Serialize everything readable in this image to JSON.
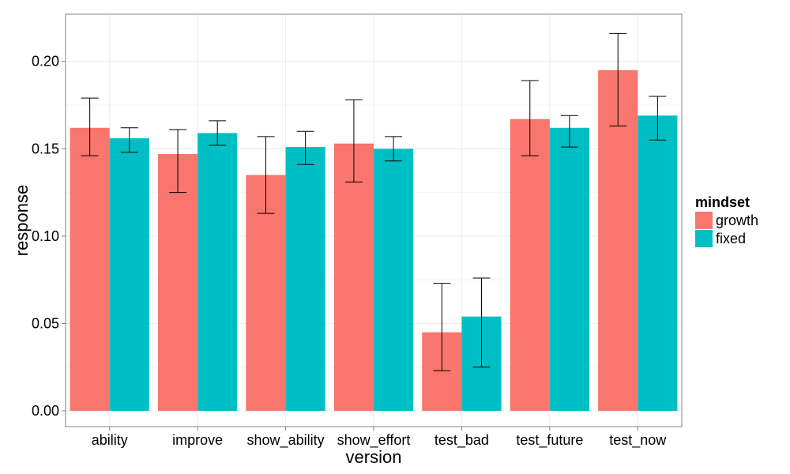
{
  "chart_data": {
    "type": "bar",
    "title": "",
    "xlabel": "version",
    "ylabel": "response",
    "categories": [
      "ability",
      "improve",
      "show_ability",
      "show_effort",
      "test_bad",
      "test_future",
      "test_now"
    ],
    "series": [
      {
        "name": "growth",
        "color": "#F8766D",
        "values": [
          0.162,
          0.147,
          0.135,
          0.153,
          0.045,
          0.167,
          0.195
        ],
        "error_low": [
          0.146,
          0.125,
          0.113,
          0.131,
          0.023,
          0.146,
          0.163
        ],
        "error_high": [
          0.179,
          0.161,
          0.157,
          0.178,
          0.073,
          0.189,
          0.216
        ]
      },
      {
        "name": "fixed",
        "color": "#00BFC4",
        "values": [
          0.156,
          0.159,
          0.151,
          0.15,
          0.054,
          0.162,
          0.169
        ],
        "error_low": [
          0.148,
          0.152,
          0.141,
          0.143,
          0.025,
          0.151,
          0.155
        ],
        "error_high": [
          0.162,
          0.166,
          0.16,
          0.157,
          0.076,
          0.169,
          0.18
        ]
      }
    ],
    "ylim": [
      -0.009,
      0.227
    ],
    "yticks": [
      0.0,
      0.05,
      0.1,
      0.15,
      0.2
    ],
    "ytick_labels": [
      "0.00",
      "0.05",
      "0.10",
      "0.15",
      "0.20"
    ],
    "grid": true,
    "legend": {
      "title": "mindset",
      "placement": "right"
    }
  }
}
